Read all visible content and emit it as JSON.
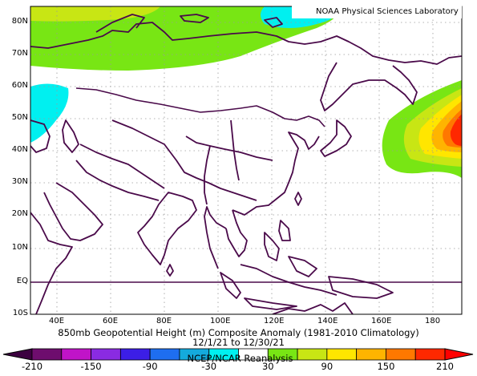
{
  "credit": "NOAA Physical Sciences Laboratory",
  "title_line1": "850mb Geopotential Height (m) Composite Anomaly (1981-2010 Climatology)",
  "title_line2": "12/1/21 to 12/30/21",
  "source_line": "NCEP/NCAR Reanalysis",
  "map": {
    "lon_range": [
      30,
      190
    ],
    "lat_range": [
      -10,
      85
    ],
    "lat_labels": [
      "80N",
      "70N",
      "60N",
      "50N",
      "40N",
      "30N",
      "20N",
      "10N",
      "EQ",
      "10S"
    ],
    "lon_labels": [
      "40E",
      "60E",
      "80E",
      "100E",
      "120E",
      "140E",
      "160E",
      "180"
    ],
    "gridlines": "dotted"
  },
  "colorbar": {
    "tick_labels": [
      "-210",
      "-150",
      "-90",
      "-30",
      "30",
      "90",
      "150",
      "210"
    ],
    "colors": [
      "#6e0d6e",
      "#c014c8",
      "#8a2be2",
      "#3c1ee6",
      "#1e6ef0",
      "#14aadc",
      "#00f0f0",
      "#ffffff",
      "#78e614",
      "#c8e614",
      "#ffe600",
      "#ffb400",
      "#ff7800",
      "#ff2800"
    ],
    "arrow_left_color": "#3c0040",
    "arrow_right_color": "#ff0000"
  },
  "anomaly_legend": {
    "positive": "#78e614",
    "negative": "#00f0f0"
  }
}
